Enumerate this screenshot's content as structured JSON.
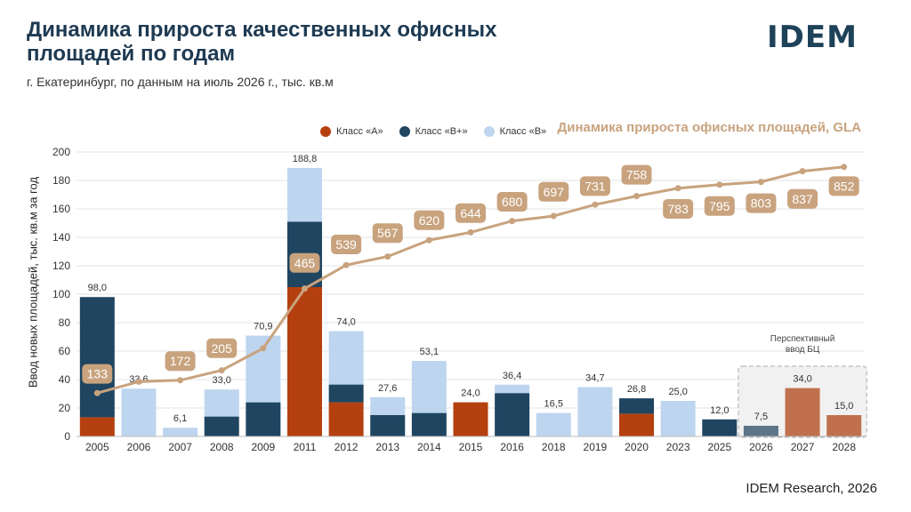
{
  "header": {
    "title": "Динамика прироста качественных офисных площадей по годам",
    "subtitle": "г. Екатеринбург, по данным на июль 2026 г., тыс. кв.м",
    "logo": "IDEM"
  },
  "footer": {
    "source": "IDEM Research, 2026"
  },
  "legend": {
    "items": [
      {
        "label": "Класс «А»",
        "color": "#b5400f"
      },
      {
        "label": "Класс «В+»",
        "color": "#1f4561"
      },
      {
        "label": "Класс «В»",
        "color": "#bdd5ef"
      }
    ]
  },
  "gla_title": "Динамика прироста офисных площадей, GLA",
  "prospective_label": "Перспективный ввод БЦ",
  "chart_data": {
    "type": "bar",
    "stacked": true,
    "ylabel": "Ввод новых площадей, тыс. кв.м за год",
    "ylim": [
      0,
      200
    ],
    "yticks": [
      0,
      20,
      40,
      60,
      80,
      100,
      120,
      140,
      160,
      180,
      200
    ],
    "grid": true,
    "categories": [
      "2005",
      "2006",
      "2007",
      "2008",
      "2009",
      "2011",
      "2012",
      "2013",
      "2014",
      "2015",
      "2016",
      "2018",
      "2019",
      "2020",
      "2023",
      "2025",
      "2026",
      "2027",
      "2028"
    ],
    "series": [
      {
        "name": "Класс «А»",
        "color": "#b5400f",
        "values": [
          13.5,
          0,
          0,
          0,
          0,
          105,
          24,
          0,
          0,
          24,
          0,
          0,
          0,
          16,
          0,
          0,
          0,
          34,
          15
        ]
      },
      {
        "name": "Класс «В+»",
        "color": "#1f4561",
        "values": [
          84.5,
          0,
          0,
          14,
          24,
          46,
          12.5,
          15,
          16.5,
          0,
          30.5,
          0,
          0,
          10.8,
          0,
          12,
          7.5,
          0,
          0
        ]
      },
      {
        "name": "Класс «В»",
        "color": "#bdd5ef",
        "values": [
          0,
          33.6,
          6.1,
          19,
          46.9,
          37.8,
          37.5,
          12.6,
          36.6,
          0,
          5.9,
          16.5,
          34.7,
          0,
          25,
          0,
          0,
          0,
          0
        ]
      }
    ],
    "totals": [
      "98,0",
      "33,6",
      "6,1",
      "33,0",
      "70,9",
      "188,8",
      "74,0",
      "27,6",
      "53,1",
      "24,0",
      "36,4",
      "16,5",
      "34,7",
      "26,8",
      "25,0",
      "12,0",
      "7,5",
      "34,0",
      "15,0"
    ],
    "prospective_categories": [
      "2026",
      "2027",
      "2028"
    ],
    "prospective_colors": {
      "Класс «А»": "#c0704d",
      "Класс «В+»": "#5c7588"
    },
    "gla": {
      "name": "Динамика прироста офисных площадей, GLA",
      "line_y": [
        30.5,
        38.5,
        39.5,
        46.5,
        62,
        104,
        120.5,
        126.5,
        138,
        143.5,
        151.5,
        155,
        163,
        169,
        174.5,
        177,
        179,
        186.5,
        189.5
      ],
      "labels": [
        "133",
        "",
        "172",
        "205",
        "",
        "465",
        "539",
        "567",
        "620",
        "644",
        "680",
        "697",
        "731",
        "758",
        "783",
        "795",
        "803",
        "837",
        "852"
      ],
      "label_y": [
        44,
        0,
        53,
        62,
        0,
        122,
        135,
        143,
        152,
        157,
        165,
        172,
        176,
        184,
        160,
        162,
        164,
        167,
        176
      ]
    }
  }
}
